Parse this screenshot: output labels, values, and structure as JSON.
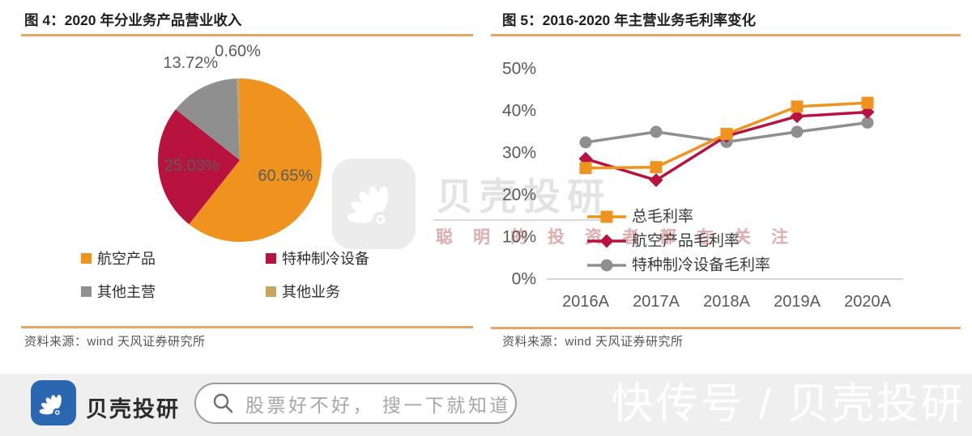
{
  "panels": {
    "left": {
      "title": "图 4：2020 年分业务产品营业收入",
      "source": "资料来源：wind 天风证券研究所"
    },
    "right": {
      "title": "图 5：2016-2020 年主营业务毛利率变化",
      "source": "资料来源：wind 天风证券研究所"
    }
  },
  "chart_data": [
    {
      "type": "pie",
      "title": "2020 年分业务产品营业收入",
      "slices": [
        {
          "label": "航空产品",
          "value": 60.65,
          "display": "60.65%",
          "color": "#F0931E"
        },
        {
          "label": "特种制冷设备",
          "value": 25.03,
          "display": "25.03%",
          "color": "#B8123E"
        },
        {
          "label": "其他主营",
          "value": 13.72,
          "display": "13.72%",
          "color": "#8F8F8F"
        },
        {
          "label": "其他业务",
          "value": 0.6,
          "display": "0.60%",
          "color": "#C9A45C"
        }
      ],
      "start_angle_deg": 0,
      "direction": "clockwise",
      "legend_position": "bottom",
      "label_color": "#5B5B5B"
    },
    {
      "type": "line",
      "title": "2016-2020 年主营业务毛利率变化",
      "categories": [
        "2016A",
        "2017A",
        "2018A",
        "2019A",
        "2020A"
      ],
      "series": [
        {
          "name": "总毛利率",
          "color": "#F0931E",
          "marker": "square",
          "values": [
            26.4,
            26.6,
            34.5,
            41.0,
            41.9
          ]
        },
        {
          "name": "航空产品毛利率",
          "color": "#B8123E",
          "marker": "diamond",
          "values": [
            28.6,
            23.5,
            34.0,
            38.7,
            39.7
          ]
        },
        {
          "name": "特种制冷设备毛利率",
          "color": "#8F8F8F",
          "marker": "circle",
          "values": [
            32.5,
            35.0,
            32.6,
            35.0,
            37.2
          ]
        }
      ],
      "y_ticks": [
        "50%",
        "40%",
        "30%",
        "20%",
        "10%",
        "0%"
      ],
      "ylim": [
        0,
        50
      ],
      "unit": "%",
      "grid": false,
      "legend_position": "inside-right",
      "axis_color": "#C8C8C8",
      "tick_color": "#595959",
      "legend_text_color": "#3A3A3A"
    }
  ],
  "watermark_center": {
    "brand": "贝壳投研",
    "slogan": "聪明的投资者都在关注"
  },
  "watermark_corner": "快传号 / 贝壳投研",
  "footer": {
    "brand": "贝壳投研",
    "search_placeholder": "股票好不好， 搜一下就知道"
  },
  "colors": {
    "rule_orange": "#E3A768",
    "logo_blue": "#2B66B0",
    "footer_bg": "#EFEFEF",
    "panel_bg": "#FFFFFF"
  }
}
